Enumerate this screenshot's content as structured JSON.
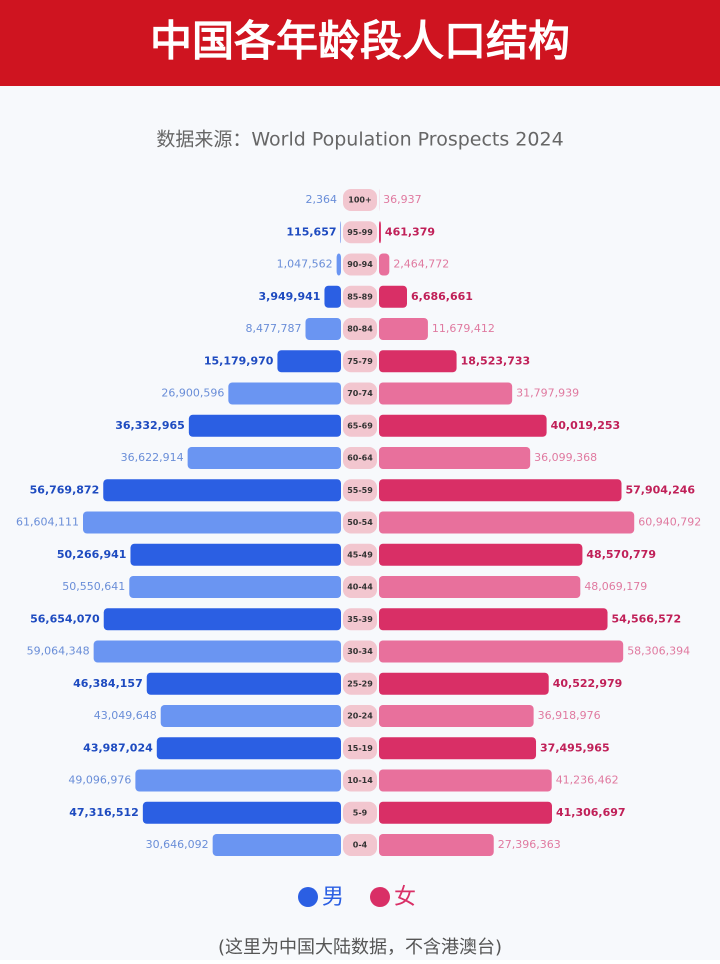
{
  "chart_data": {
    "type": "pyramid",
    "title": "中国各年龄段人口结构",
    "subtitle": "数据来源：World Population Prospects 2024",
    "footnote": "(这里为中国大陆数据，不含港澳台)",
    "categories": [
      "100+",
      "95-99",
      "90-94",
      "85-89",
      "80-84",
      "75-79",
      "70-74",
      "65-69",
      "60-64",
      "55-59",
      "50-54",
      "45-49",
      "40-44",
      "35-39",
      "30-34",
      "25-29",
      "20-24",
      "15-19",
      "10-14",
      "5-9",
      "0-4"
    ],
    "series": [
      {
        "name": "男",
        "colors": [
          "#6a95f2",
          "#2b5fe3"
        ],
        "values": [
          2364,
          115657,
          1047562,
          3949941,
          8477787,
          15179970,
          26900596,
          36332965,
          36622914,
          56769872,
          61604111,
          50266941,
          50550641,
          56654070,
          59064348,
          46384157,
          43049648,
          43987024,
          49096976,
          47316512,
          30646092
        ],
        "value_labels": [
          "2,364",
          "115,657",
          "1,047,562",
          "3,949,941",
          "8,477,787",
          "15,179,970",
          "26,900,596",
          "36,332,965",
          "36,622,914",
          "56,769,872",
          "61,604,111",
          "50,266,941",
          "50,550,641",
          "56,654,070",
          "59,064,348",
          "46,384,157",
          "43,049,648",
          "43,987,024",
          "49,096,976",
          "47,316,512",
          "30,646,092"
        ]
      },
      {
        "name": "女",
        "colors": [
          "#e8709c",
          "#d92f66"
        ],
        "values": [
          36937,
          461379,
          2464772,
          6686661,
          11679412,
          18523733,
          31797939,
          40019253,
          36099368,
          57904246,
          60940792,
          48570779,
          48069179,
          54566572,
          58306394,
          40522979,
          36918976,
          37495965,
          41236462,
          41306697,
          27396363
        ],
        "value_labels": [
          "36,937",
          "461,379",
          "2,464,772",
          "6,686,661",
          "11,679,412",
          "18,523,733",
          "31,797,939",
          "40,019,253",
          "36,099,368",
          "57,904,246",
          "60,940,792",
          "48,570,779",
          "48,069,179",
          "54,566,572",
          "58,306,394",
          "40,522,979",
          "36,918,976",
          "37,495,965",
          "41,236,462",
          "41,306,697",
          "27,396,363"
        ]
      }
    ]
  }
}
